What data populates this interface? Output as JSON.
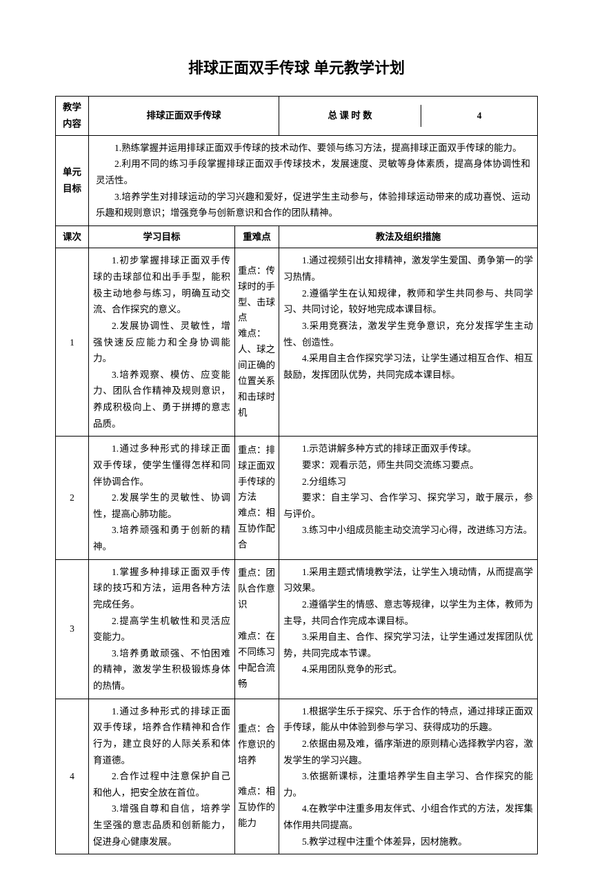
{
  "title": "排球正面双手传球 单元教学计划",
  "header": {
    "contentLabel": "教学内容",
    "contentValue": "排球正面双手传球",
    "totalLabel": "总 课 时 数",
    "totalValue": "4"
  },
  "unitGoals": {
    "label": "单元目标",
    "items": [
      "1.熟练掌握并运用排球正面双手传球的技术动作、要领与练习方法，提高排球正面双手传球的能力。",
      "2.利用不同的练习手段掌握排球正面双手传球技术，发展速度、灵敏等身体素质，提高身体协调性和灵活性。",
      "3.培养学生对排球运动的学习兴趣和爱好，促进学生主动参与，体验排球运动带来的成功喜悦、运动乐趣和规则意识；增强竞争与创新意识和合作的团队精神。"
    ]
  },
  "columns": {
    "c1": "课次",
    "c2": "学习目标",
    "c3": "重难点",
    "c4": "教法及组织措施"
  },
  "lessons": [
    {
      "num": "1",
      "goals": [
        "1.初步掌握排球正面双手传球的击球部位和出手手型，能积极主动地参与练习，明确互动交流、合作探究的意义。",
        "2.发展协调性、灵敏性，增强快速反应能力和全身协调能力。",
        "3.培养观察、模仿、应变能力、团队合作精神及规则意识，养成积极向上、勇于拼搏的意志品质。"
      ],
      "keyPoints": "重点：传球时的手型、击球点\n难点：人、球之间正确的位置关系和击球时机",
      "methods": [
        "1.通过视频引出女排精神，激发学生爱国、勇争第一的学习热情。",
        "2.遵循学生在认知规律，教师和学生共同参与、共同学习、共同讨论，较好地完成本课目标。",
        "3.采用竞赛法，激发学生竞争意识，充分发挥学生主动性、创造性。",
        "4.采用自主合作探究学习法，让学生通过相互合作、相互鼓励，发挥团队优势，共同完成本课目标。"
      ]
    },
    {
      "num": "2",
      "goals": [
        "1.通过多种形式的排球正面双手传球，使学生懂得怎样和同伴协调合作。",
        "2.发展学生的灵敏性、协调性，提高心肺功能。",
        "3.培养顽强和勇于创新的精神。"
      ],
      "keyPoints": "重点：排球正面双手传球的方法\n难点：相互协作配合",
      "methods": [
        "1.示范讲解多种方式的排球正面双手传球。",
        "要求：观看示范，师生共同交流练习要点。",
        "2.分组练习",
        "要求：自主学习、合作学习、探究学习，敢于展示，参与评价。",
        "3.练习中小组成员能主动交流学习心得，改进练习方法。"
      ]
    },
    {
      "num": "3",
      "goals": [
        "1.掌握多种排球正面双手传球的技巧和方法，运用各种方法完成任务。",
        "2.提高学生机敏性和灵活应变能力。",
        "3.培养勇敢顽强、不怕困难的精神，激发学生积极锻炼身体的热情。"
      ],
      "keyPoints": "重点：团队合作意识\n\n难点：在不同练习中配合流畅",
      "methods": [
        "1.采用主题式情境教学法，让学生入境动情，从而提高学习效果。",
        "2.遵循学生的情感、意志等规律，以学生为主体，教师为主导，共同合作完成本课目标。",
        "3.采用自主、合作、探究学习法，让学生通过发挥团队优势，共同完成本节课。",
        "4.采用团队竞争的形式。"
      ]
    },
    {
      "num": "4",
      "goals": [
        "1.通过多种形式的排球正面双手传球，培养合作精神和合作行为，建立良好的人际关系和体育道德。",
        "2.合作过程中注意保护自己和他人，把安全放在首位。",
        "3.增强自尊和自信，培养学生坚强的意志品质和创新能力，促进身心健康发展。"
      ],
      "keyPoints": "重点：合作意识的培养\n\n难点：相互协作的能力",
      "methods": [
        "1.根据学生乐于探究、乐于合作的特点，通过排球正面双手传球，能从中体验到参与学习、获得成功的乐趣。",
        "2.依据由易及难，循序渐进的原则精心选择教学内容，激发学生的学习兴趣。",
        "3.依据新课标，注重培养学生自主学习、合作探究的能力。",
        "4.在教学中注重多用友伴式、小组合作式的方法，发挥集体作用共同提高。",
        "5.教学过程中注重个体差异，因材施教。"
      ]
    }
  ]
}
